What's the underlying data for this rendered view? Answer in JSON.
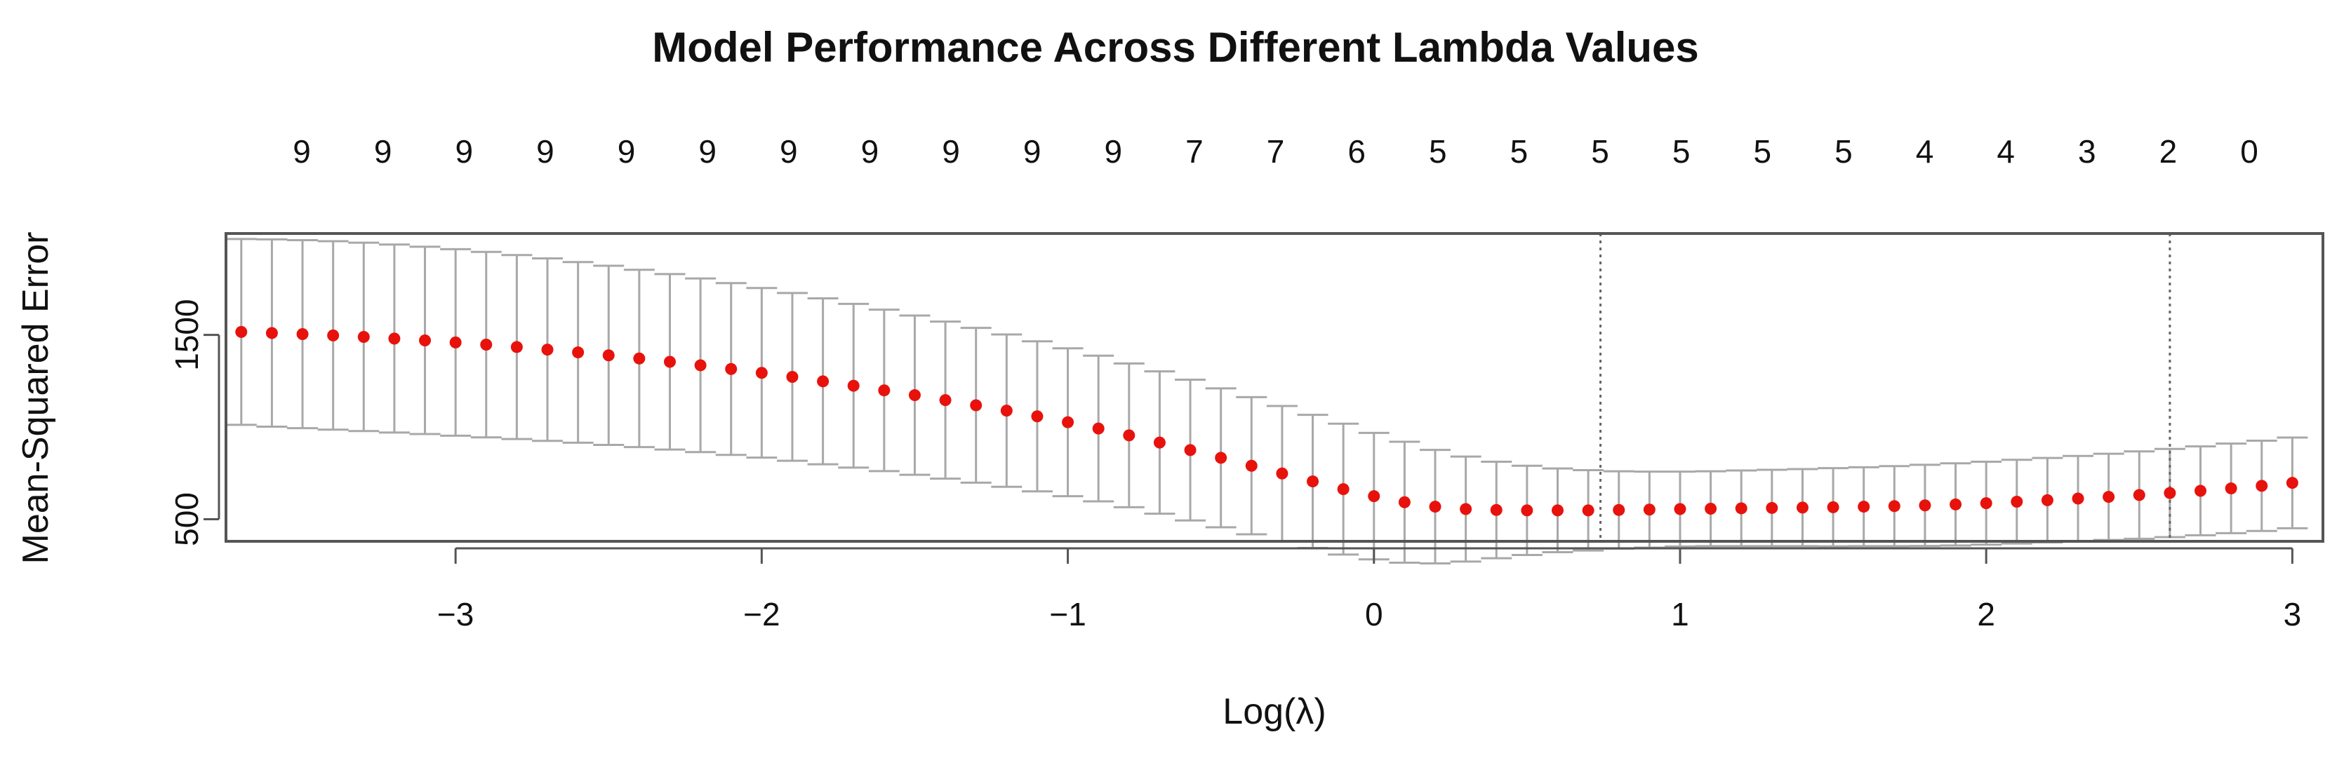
{
  "chart_data": {
    "type": "scatter",
    "title": "Model Performance Across Different Lambda Values",
    "xlabel": "Log(λ)",
    "ylabel": "Mean-Squared Error",
    "xlim": [
      -3.75,
      3.1
    ],
    "ylim": [
      380,
      2050
    ],
    "xticks": [
      -3,
      -2,
      -1,
      0,
      1,
      2,
      3
    ],
    "yticks": [
      500,
      1500
    ],
    "x_tick_labels": [
      "−3",
      "−2",
      "−1",
      "0",
      "1",
      "2",
      "3"
    ],
    "y_tick_labels": [
      "500",
      "1500"
    ],
    "top_axis_labels": [
      "9",
      "9",
      "9",
      "9",
      "9",
      "9",
      "9",
      "9",
      "9",
      "9",
      "9",
      "7",
      "7",
      "6",
      "5",
      "5",
      "5",
      "5",
      "5",
      "5",
      "4",
      "4",
      "3",
      "2",
      "0"
    ],
    "vlines_x": [
      0.74,
      2.6
    ],
    "series": [
      {
        "x": [
          -3.7,
          -3.6,
          -3.5,
          -3.4,
          -3.3,
          -3.2,
          -3.1,
          -3.0,
          -2.9,
          -2.8,
          -2.7,
          -2.6,
          -2.5,
          -2.4,
          -2.3,
          -2.2,
          -2.1,
          -2.0,
          -1.9,
          -1.8,
          -1.7,
          -1.6,
          -1.5,
          -1.4,
          -1.3,
          -1.2,
          -1.1,
          -1.0,
          -0.9,
          -0.8,
          -0.7,
          -0.6,
          -0.5,
          -0.4,
          -0.3,
          -0.2,
          -0.1,
          0.0,
          0.1,
          0.2,
          0.3,
          0.4,
          0.5,
          0.6,
          0.7,
          0.8,
          0.9,
          1.0,
          1.1,
          1.2,
          1.3,
          1.4,
          1.5,
          1.6,
          1.7,
          1.8,
          1.9,
          2.0,
          2.1,
          2.2,
          2.3,
          2.4,
          2.5,
          2.6,
          2.7,
          2.8,
          2.9,
          3.0
        ],
        "y": [
          1516,
          1510,
          1504,
          1497,
          1489,
          1480,
          1470,
          1459,
          1447,
          1434,
          1420,
          1405,
          1389,
          1372,
          1354,
          1335,
          1315,
          1294,
          1272,
          1248,
          1224,
          1199,
          1173,
          1146,
          1118,
          1089,
          1058,
          1026,
          992,
          955,
          916,
          875,
          833,
          790,
          748,
          705,
          663,
          625,
          592,
          568,
          555,
          550,
          548,
          548,
          548,
          550,
          552,
          555,
          557,
          559,
          561,
          563,
          565,
          568,
          571,
          575,
          580,
          587,
          595,
          603,
          612,
          621,
          631,
          642,
          654,
          667,
          681,
          697
        ],
        "upper": [
          2020,
          2018,
          2014,
          2008,
          2000,
          1990,
          1978,
          1965,
          1950,
          1933,
          1915,
          1895,
          1875,
          1853,
          1830,
          1806,
          1781,
          1754,
          1727,
          1698,
          1668,
          1637,
          1605,
          1572,
          1538,
          1502,
          1465,
          1427,
          1387,
          1345,
          1302,
          1257,
          1210,
          1162,
          1114,
          1066,
          1018,
          968,
          920,
          876,
          840,
          812,
          790,
          775,
          766,
          760,
          758,
          758,
          760,
          764,
          768,
          772,
          777,
          782,
          788,
          795,
          803,
          812,
          822,
          832,
          843,
          855,
          868,
          881,
          895,
          910,
          926,
          943
        ],
        "lower": [
          1012,
          1002,
          994,
          986,
          978,
          970,
          962,
          953,
          944,
          935,
          925,
          915,
          903,
          891,
          878,
          864,
          849,
          834,
          817,
          798,
          780,
          761,
          741,
          720,
          698,
          676,
          651,
          625,
          597,
          565,
          530,
          493,
          456,
          418,
          382,
          344,
          308,
          282,
          264,
          260,
          270,
          288,
          306,
          321,
          330,
          340,
          346,
          352,
          354,
          354,
          354,
          354,
          353,
          354,
          354,
          355,
          357,
          362,
          368,
          374,
          381,
          387,
          394,
          403,
          413,
          424,
          436,
          451
        ]
      }
    ],
    "colors": {
      "point": "#e8120c",
      "errorbar": "#a8a8a8",
      "axis": "#555555",
      "vline": "#666666"
    }
  }
}
